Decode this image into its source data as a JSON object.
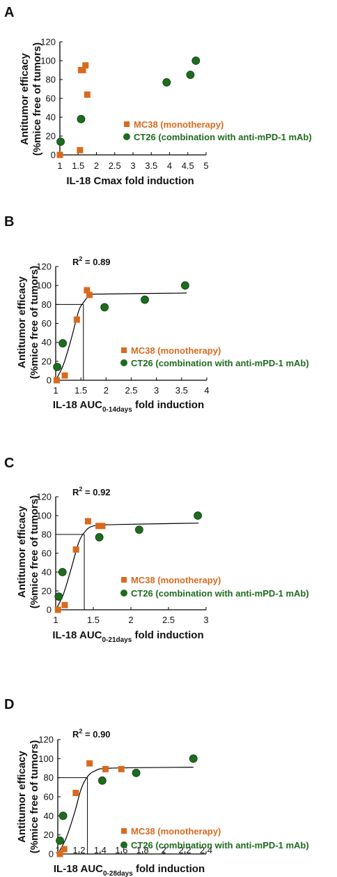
{
  "colors": {
    "mc38": "#d86a1e",
    "ct26": "#1f6b1f",
    "axis": "#000000"
  },
  "chart_data": [
    {
      "panel": "A",
      "type": "scatter",
      "xlabel": "IL-18 Cmax fold induction",
      "xlabel_sub": "",
      "xlabel_after": "",
      "ylabel_line1": "Antitumor efficacy",
      "ylabel_line2": "(%mice free of tumors)",
      "xlim": [
        1,
        5
      ],
      "ylim": [
        0,
        120
      ],
      "xticks": [
        1,
        1.5,
        2,
        2.5,
        3,
        3.5,
        4,
        4.5,
        5
      ],
      "xtick_labels": [
        "1",
        "1.5",
        "2",
        "2.5",
        "3",
        "3.5",
        "4",
        "4.5",
        "5"
      ],
      "yticks": [
        0,
        20,
        40,
        60,
        80,
        100,
        120
      ],
      "r2": "",
      "fit": null,
      "threshold": null,
      "series": [
        {
          "name": "MC38 (monotherapy)",
          "marker": "square",
          "points": [
            [
              1.0,
              0
            ],
            [
              1.55,
              5
            ],
            [
              1.58,
              90
            ],
            [
              1.63,
              90
            ],
            [
              1.7,
              95
            ],
            [
              1.75,
              64
            ]
          ]
        },
        {
          "name": "CT26 (combination with anti-mPD-1 mAb)",
          "marker": "circle",
          "points": [
            [
              1.02,
              14
            ],
            [
              1.58,
              38
            ],
            [
              3.92,
              77
            ],
            [
              4.57,
              85
            ],
            [
              4.72,
              100
            ]
          ]
        }
      ]
    },
    {
      "panel": "B",
      "type": "scatter",
      "xlabel": "IL-18 AUC",
      "xlabel_sub": "0-14days",
      "xlabel_after": " fold induction",
      "ylabel_line1": "Antitumor efficacy",
      "ylabel_line2": "(%mice free of tumors)",
      "xlim": [
        1,
        4
      ],
      "ylim": [
        0,
        120
      ],
      "xticks": [
        1,
        1.5,
        2,
        2.5,
        3,
        3.5,
        4
      ],
      "xtick_labels": [
        "1",
        "1.5",
        "2",
        "2.5",
        "3",
        "3.5",
        "4"
      ],
      "yticks": [
        0,
        20,
        40,
        60,
        80,
        100,
        120
      ],
      "r2": "0.89",
      "fit": [
        [
          1.0,
          0
        ],
        [
          1.15,
          16
        ],
        [
          1.3,
          42
        ],
        [
          1.45,
          72
        ],
        [
          1.55,
          82
        ],
        [
          1.7,
          90
        ],
        [
          2.0,
          91
        ],
        [
          3.6,
          92
        ]
      ],
      "threshold": {
        "x": 1.55,
        "y": 80
      },
      "series": [
        {
          "name": "MC38 (monotherapy)",
          "marker": "square",
          "points": [
            [
              1.02,
              0
            ],
            [
              1.18,
              5
            ],
            [
              1.42,
              64
            ],
            [
              1.62,
              95
            ],
            [
              1.67,
              90
            ]
          ]
        },
        {
          "name": "CT26 (combination with anti-mPD-1 mAb)",
          "marker": "circle",
          "points": [
            [
              1.03,
              14
            ],
            [
              1.14,
              39
            ],
            [
              1.97,
              77
            ],
            [
              2.77,
              85
            ],
            [
              3.57,
              100
            ]
          ]
        }
      ]
    },
    {
      "panel": "C",
      "type": "scatter",
      "xlabel": "IL-18 AUC",
      "xlabel_sub": "0-21days",
      "xlabel_after": " fold induction",
      "ylabel_line1": "Antitumor efficacy",
      "ylabel_line2": "(%mice free of tumors)",
      "xlim": [
        1,
        3
      ],
      "ylim": [
        0,
        120
      ],
      "xticks": [
        1,
        1.5,
        2,
        2.5,
        3
      ],
      "xtick_labels": [
        "1",
        "1.5",
        "2",
        "2.5",
        "3"
      ],
      "yticks": [
        0,
        20,
        40,
        60,
        80,
        100,
        120
      ],
      "r2": "0.92",
      "fit": [
        [
          1.0,
          0
        ],
        [
          1.1,
          16
        ],
        [
          1.2,
          42
        ],
        [
          1.3,
          70
        ],
        [
          1.38,
          82
        ],
        [
          1.5,
          89
        ],
        [
          1.8,
          90.5
        ],
        [
          2.9,
          92
        ]
      ],
      "threshold": {
        "x": 1.38,
        "y": 80
      },
      "series": [
        {
          "name": "MC38 (monotherapy)",
          "marker": "square",
          "points": [
            [
              1.03,
              0
            ],
            [
              1.12,
              5
            ],
            [
              1.27,
              64
            ],
            [
              1.43,
              94
            ],
            [
              1.57,
              89
            ],
            [
              1.62,
              89
            ]
          ]
        },
        {
          "name": "CT26 (combination with anti-mPD-1 mAb)",
          "marker": "circle",
          "points": [
            [
              1.04,
              14
            ],
            [
              1.09,
              40
            ],
            [
              1.58,
              77
            ],
            [
              2.11,
              85
            ],
            [
              2.89,
              100
            ]
          ]
        }
      ]
    },
    {
      "panel": "D",
      "type": "scatter",
      "xlabel": "IL-18 AUC",
      "xlabel_sub": "0-28days",
      "xlabel_after": " fold induction",
      "ylabel_line1": "Antitumor efficacy",
      "ylabel_line2": "(%mice free of tumors)",
      "xlim": [
        1,
        2.4
      ],
      "ylim": [
        0,
        120
      ],
      "xticks": [
        1,
        1.2,
        1.4,
        1.6,
        1.8,
        2,
        2.2,
        2.4
      ],
      "xtick_labels": [
        "1",
        "1.2",
        "1.4",
        "1.6",
        "1.8",
        "2",
        "2.2",
        "2.4"
      ],
      "yticks": [
        0,
        20,
        40,
        60,
        80,
        100,
        120
      ],
      "r2": "0.90",
      "fit": [
        [
          1.0,
          0
        ],
        [
          1.08,
          17
        ],
        [
          1.16,
          44
        ],
        [
          1.22,
          68
        ],
        [
          1.28,
          81
        ],
        [
          1.35,
          87
        ],
        [
          1.5,
          90
        ],
        [
          2.28,
          91
        ]
      ],
      "threshold": {
        "x": 1.28,
        "y": 80
      },
      "series": [
        {
          "name": "MC38 (monotherapy)",
          "marker": "square",
          "points": [
            [
              1.02,
              0
            ],
            [
              1.06,
              5
            ],
            [
              1.17,
              64
            ],
            [
              1.3,
              95
            ],
            [
              1.45,
              89
            ],
            [
              1.6,
              89
            ]
          ]
        },
        {
          "name": "CT26 (combination with anti-mPD-1 mAb)",
          "marker": "circle",
          "points": [
            [
              1.02,
              14
            ],
            [
              1.05,
              40
            ],
            [
              1.42,
              77
            ],
            [
              1.74,
              85
            ],
            [
              2.28,
              100
            ]
          ]
        }
      ]
    }
  ]
}
